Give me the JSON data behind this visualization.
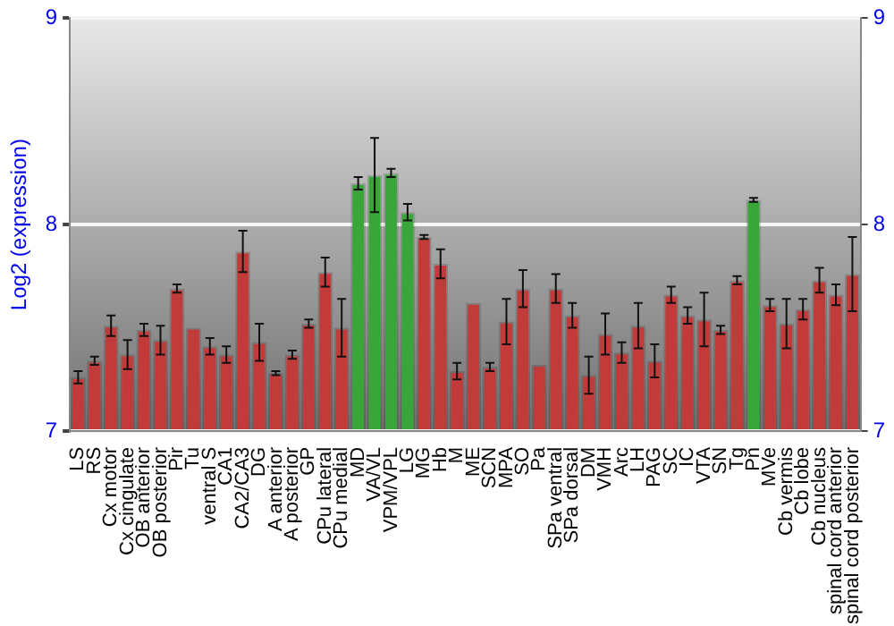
{
  "chart_data": {
    "type": "bar",
    "ylabel": "Log2 (expression)",
    "categories": [
      "LS",
      "RS",
      "Cx motor",
      "Cx cingulate",
      "OB anterior",
      "OB posterior",
      "Pir",
      "Tu",
      "ventral S",
      "CA1",
      "CA2/CA3",
      "DG",
      "A anterior",
      "A posterior",
      "GP",
      "CPu lateral",
      "CPu medial",
      "MD",
      "VA/VL",
      "VPM/VPL",
      "LG",
      "MG",
      "Hb",
      "M",
      "ME",
      "SCN",
      "MPA",
      "SO",
      "Pa",
      "SPa ventral",
      "SPa dorsal",
      "DM",
      "VMH",
      "Arc",
      "LH",
      "PAG",
      "SC",
      "IC",
      "VTA",
      "SN",
      "Tg",
      "Pn",
      "MVe",
      "Cb vermis",
      "Cb lobe",
      "Cb nucleus",
      "spinal cord anterior",
      "spinal cord posterior"
    ],
    "values": [
      7.26,
      7.34,
      7.51,
      7.37,
      7.49,
      7.44,
      7.69,
      7.5,
      7.41,
      7.37,
      7.87,
      7.43,
      7.28,
      7.37,
      7.52,
      7.77,
      7.5,
      8.2,
      8.24,
      8.25,
      8.06,
      7.94,
      7.81,
      7.29,
      7.62,
      7.31,
      7.53,
      7.69,
      7.32,
      7.69,
      7.56,
      7.27,
      7.47,
      7.38,
      7.51,
      7.34,
      7.66,
      7.56,
      7.54,
      7.49,
      7.73,
      8.12,
      7.61,
      7.52,
      7.59,
      7.73,
      7.66,
      7.76
    ],
    "errors": [
      0.03,
      0.02,
      0.05,
      0.07,
      0.03,
      0.07,
      0.02,
      null,
      0.04,
      0.04,
      0.1,
      0.09,
      0.01,
      0.02,
      0.02,
      0.07,
      0.14,
      0.03,
      0.18,
      0.02,
      0.04,
      0.01,
      0.07,
      0.04,
      null,
      0.02,
      0.11,
      0.09,
      null,
      0.07,
      0.06,
      0.09,
      0.1,
      0.05,
      0.11,
      0.08,
      0.04,
      0.04,
      0.13,
      0.02,
      0.02,
      0.01,
      0.03,
      0.12,
      0.05,
      0.06,
      0.05,
      0.18
    ],
    "colors": [
      "#c23b3b",
      "#c23b3b",
      "#c23b3b",
      "#c23b3b",
      "#c23b3b",
      "#c23b3b",
      "#c23b3b",
      "#c23b3b",
      "#c23b3b",
      "#c23b3b",
      "#c23b3b",
      "#c23b3b",
      "#c23b3b",
      "#c23b3b",
      "#c23b3b",
      "#c23b3b",
      "#c23b3b",
      "#3aa63a",
      "#3aa63a",
      "#3aa63a",
      "#3aa63a",
      "#c23b3b",
      "#c23b3b",
      "#c23b3b",
      "#c23b3b",
      "#c23b3b",
      "#c23b3b",
      "#c23b3b",
      "#c23b3b",
      "#c23b3b",
      "#c23b3b",
      "#c23b3b",
      "#c23b3b",
      "#c23b3b",
      "#c23b3b",
      "#c23b3b",
      "#c23b3b",
      "#c23b3b",
      "#c23b3b",
      "#c23b3b",
      "#c23b3b",
      "#3aa63a",
      "#c23b3b",
      "#c23b3b",
      "#c23b3b",
      "#c23b3b",
      "#c23b3b",
      "#c23b3b"
    ],
    "ylim": [
      7,
      9
    ],
    "yticks": [
      7,
      8,
      9
    ],
    "y2lim": [
      7,
      9
    ],
    "y2ticks": [
      7,
      8,
      9
    ],
    "grid": "y",
    "legend": false
  }
}
